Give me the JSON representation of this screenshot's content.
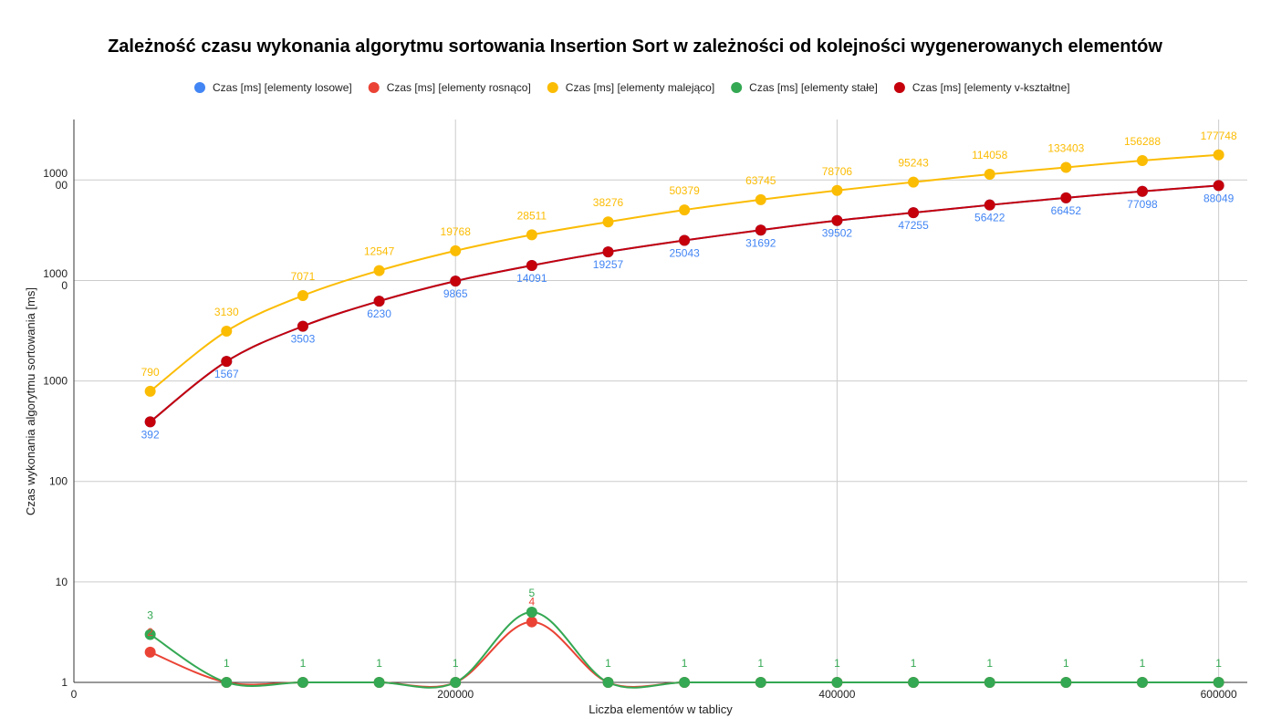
{
  "chart_data": {
    "type": "line",
    "title": "Zależność czasu wykonania algorytmu sortowania Insertion Sort w zależności od kolejności wygenerowanych elementów",
    "xlabel": "Liczba elementów w tablicy",
    "ylabel": "Czas wykonania algorytmu sortowania [ms]",
    "x": [
      40000,
      80000,
      120000,
      160000,
      200000,
      240000,
      280000,
      320000,
      360000,
      400000,
      440000,
      480000,
      520000,
      560000,
      600000
    ],
    "xlim": [
      0,
      615000
    ],
    "xticks": [
      "0",
      "200000",
      "400000",
      "600000"
    ],
    "xtick_values": [
      0,
      200000,
      400000,
      600000
    ],
    "y_scale": "log",
    "ylim": [
      1,
      400000
    ],
    "yticks": [
      {
        "value": 1,
        "lines": [
          "1"
        ]
      },
      {
        "value": 10,
        "lines": [
          "10"
        ]
      },
      {
        "value": 100,
        "lines": [
          "100"
        ]
      },
      {
        "value": 1000,
        "lines": [
          "1000"
        ]
      },
      {
        "value": 10000,
        "lines": [
          "1000",
          "0"
        ]
      },
      {
        "value": 100000,
        "lines": [
          "1000",
          "00"
        ]
      }
    ],
    "grid": true,
    "legend_position": "top",
    "series": [
      {
        "name": "Czas [ms] [elementy losowe]",
        "color": "#4285f4",
        "values": [
          392,
          1567,
          3503,
          6230,
          9865,
          14091,
          19257,
          25043,
          31692,
          39502,
          47255,
          56422,
          66452,
          77098,
          88049
        ],
        "labels": [
          "392",
          "1567",
          "3503",
          "6230",
          "9865",
          "14091",
          "19257",
          "25043",
          "31692",
          "39502",
          "47255",
          "56422",
          "66452",
          "77098",
          "88049"
        ]
      },
      {
        "name": "Czas [ms] [elementy rosnąco]",
        "color": "#ea4335",
        "values": [
          2,
          1,
          1,
          1,
          1,
          4,
          1,
          1,
          1,
          1,
          1,
          1,
          1,
          1,
          1
        ],
        "labels": [
          "2",
          "",
          "",
          "",
          "",
          "4",
          "",
          "",
          "",
          "",
          "",
          "",
          "",
          "",
          ""
        ]
      },
      {
        "name": "Czas [ms] [elementy malejąco]",
        "color": "#fbbc04",
        "values": [
          790,
          3130,
          7071,
          12547,
          19768,
          28511,
          38276,
          50379,
          63745,
          78706,
          95243,
          114058,
          133403,
          156288,
          177748
        ],
        "labels": [
          "790",
          "3130",
          "7071",
          "12547",
          "19768",
          "28511",
          "38276",
          "50379",
          "63745",
          "78706",
          "95243",
          "114058",
          "133403",
          "156288",
          "177748"
        ]
      },
      {
        "name": "Czas [ms] [elementy stałe]",
        "color": "#34a853",
        "values": [
          3,
          1,
          1,
          1,
          1,
          5,
          1,
          1,
          1,
          1,
          1,
          1,
          1,
          1,
          1
        ],
        "labels": [
          "3",
          "1",
          "1",
          "1",
          "1",
          "5",
          "1",
          "1",
          "1",
          "1",
          "1",
          "1",
          "1",
          "1",
          "1"
        ]
      },
      {
        "name": "Czas [ms] [elementy v-kształtne]",
        "color": "#c5000b",
        "values": [
          392,
          1567,
          3503,
          6230,
          9865,
          14091,
          19257,
          25043,
          31692,
          39502,
          47255,
          56422,
          66452,
          77098,
          88049
        ],
        "labels": []
      }
    ]
  }
}
